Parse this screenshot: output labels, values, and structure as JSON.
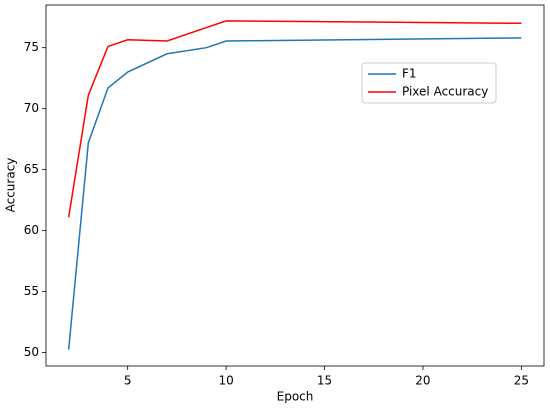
{
  "chart_data": {
    "type": "line",
    "x_label": "Epoch",
    "y_label": "Accuracy",
    "x": [
      2,
      3,
      4,
      5,
      7,
      9,
      10,
      25
    ],
    "series": [
      {
        "name": "F1",
        "color": "#1f77b4",
        "values": [
          50.25,
          67.2,
          71.7,
          73.0,
          74.5,
          75.0,
          75.55,
          75.8
        ]
      },
      {
        "name": "Pixel Accuracy",
        "color": "#ff0000",
        "values": [
          61.1,
          71.1,
          75.1,
          75.65,
          75.55,
          76.65,
          77.2,
          77.0
        ]
      }
    ],
    "xlim": [
      0.85,
      26.15
    ],
    "xticks": [
      5,
      10,
      15,
      20,
      25
    ],
    "ylim": [
      48.9,
      78.5
    ],
    "yticks": [
      50,
      55,
      60,
      65,
      70,
      75
    ],
    "grid": false,
    "legend": "right"
  }
}
